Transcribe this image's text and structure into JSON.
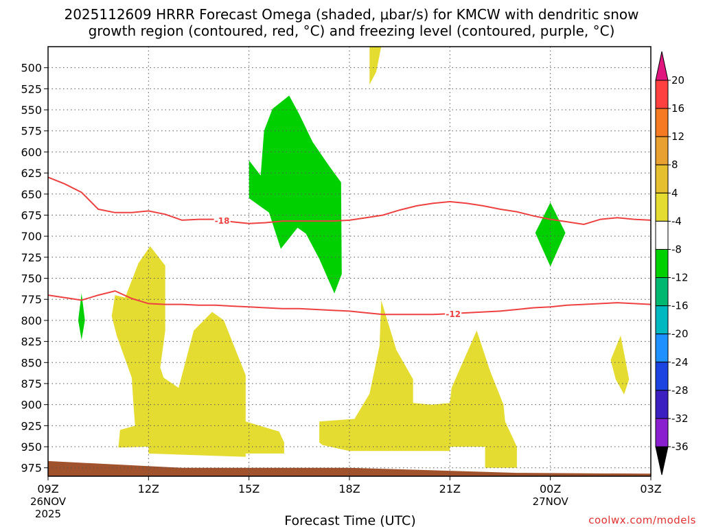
{
  "chart_data": {
    "type": "time-height contour",
    "title_line1": "2025112609 HRRR Forecast Omega (shaded, μbar/s) for KMCW with dendritic snow",
    "title_line2": "growth region (contoured, red, °C) and freezing level (contoured, purple, °C)",
    "xlabel": "Forecast Time (UTC)",
    "credit": "coolwx.com/models",
    "x_ticks": [
      {
        "t": 0,
        "label": "09Z",
        "date": "26NOV",
        "year": "2025"
      },
      {
        "t": 3,
        "label": "12Z",
        "date": "",
        "year": ""
      },
      {
        "t": 6,
        "label": "15Z",
        "date": "",
        "year": ""
      },
      {
        "t": 9,
        "label": "18Z",
        "date": "",
        "year": ""
      },
      {
        "t": 12,
        "label": "21Z",
        "date": "",
        "year": ""
      },
      {
        "t": 15,
        "label": "00Z",
        "date": "27NOV",
        "year": ""
      },
      {
        "t": 18,
        "label": "03Z",
        "date": "",
        "year": ""
      }
    ],
    "xlim_hours": [
      0,
      18
    ],
    "y_ticks": [
      500,
      525,
      550,
      575,
      600,
      625,
      650,
      675,
      700,
      725,
      750,
      775,
      800,
      825,
      850,
      875,
      900,
      925,
      950,
      975
    ],
    "ylim_mb": [
      475,
      985
    ],
    "omega_regions": [
      {
        "category": "4 to 8",
        "color": "#e5dc32",
        "points": [
          [
            9.6,
            475
          ],
          [
            9.95,
            475
          ],
          [
            9.8,
            505
          ],
          [
            9.6,
            520
          ]
        ]
      },
      {
        "category": "-8 to -4",
        "color": "#00d000",
        "points": [
          [
            6.35,
            628
          ],
          [
            6.45,
            575
          ],
          [
            6.7,
            549
          ],
          [
            7.2,
            533
          ],
          [
            7.5,
            555
          ],
          [
            7.9,
            588
          ],
          [
            8.4,
            617
          ],
          [
            8.75,
            636
          ],
          [
            8.77,
            745
          ],
          [
            8.55,
            768
          ],
          [
            8.1,
            727
          ],
          [
            7.7,
            697
          ],
          [
            7.45,
            690
          ],
          [
            7.05,
            710
          ],
          [
            6.95,
            715
          ],
          [
            6.6,
            672
          ],
          [
            6.0,
            655
          ],
          [
            6.0,
            610
          ]
        ]
      },
      {
        "category": "-8 to -4",
        "color": "#00d000",
        "points": [
          [
            15.0,
            660
          ],
          [
            15.45,
            696
          ],
          [
            15.0,
            736
          ],
          [
            14.55,
            696
          ]
        ]
      },
      {
        "category": "-8 to -4",
        "color": "#00d000",
        "points": [
          [
            1.0,
            768
          ],
          [
            1.1,
            800
          ],
          [
            1.0,
            823
          ],
          [
            0.9,
            800
          ]
        ]
      },
      {
        "category": "4 to 8",
        "color": "#e5dc32",
        "points": [
          [
            2.3,
            773
          ],
          [
            2.7,
            732
          ],
          [
            3.05,
            712
          ],
          [
            3.5,
            735
          ],
          [
            3.5,
            812
          ],
          [
            3.35,
            856
          ],
          [
            3.45,
            868
          ],
          [
            3.9,
            880
          ],
          [
            4.35,
            812
          ],
          [
            4.9,
            790
          ],
          [
            5.25,
            800
          ],
          [
            5.45,
            820
          ],
          [
            5.9,
            865
          ],
          [
            5.9,
            920
          ],
          [
            6.9,
            932
          ],
          [
            7.05,
            945
          ],
          [
            7.05,
            958
          ],
          [
            5.9,
            958
          ],
          [
            5.9,
            962
          ],
          [
            3.0,
            958
          ],
          [
            3.0,
            950
          ],
          [
            2.1,
            951
          ],
          [
            2.15,
            930
          ],
          [
            2.6,
            925
          ],
          [
            2.55,
            900
          ],
          [
            2.5,
            868
          ],
          [
            2.05,
            818
          ],
          [
            1.9,
            795
          ],
          [
            2.0,
            770
          ]
        ]
      },
      {
        "category": "4 to 8",
        "color": "#e5dc32",
        "points": [
          [
            8.1,
            920
          ],
          [
            9.15,
            917
          ],
          [
            9.6,
            887
          ],
          [
            9.9,
            830
          ],
          [
            9.95,
            776
          ],
          [
            10.4,
            835
          ],
          [
            10.9,
            870
          ],
          [
            10.9,
            898
          ],
          [
            11.45,
            900
          ],
          [
            12.0,
            898
          ],
          [
            12.05,
            880
          ],
          [
            12.8,
            812
          ],
          [
            13.2,
            860
          ],
          [
            13.6,
            900
          ],
          [
            13.65,
            920
          ],
          [
            14.0,
            950
          ],
          [
            14.0,
            975
          ],
          [
            13.05,
            975
          ],
          [
            13.05,
            950
          ],
          [
            12.0,
            950
          ],
          [
            12.0,
            955
          ],
          [
            9.0,
            955
          ],
          [
            9.0,
            955
          ],
          [
            8.2,
            948
          ],
          [
            8.1,
            945
          ]
        ]
      },
      {
        "category": "4 to 8",
        "color": "#e5dc32",
        "points": [
          [
            17.1,
            818
          ],
          [
            17.35,
            870
          ],
          [
            17.2,
            888
          ],
          [
            16.95,
            870
          ],
          [
            16.8,
            847
          ]
        ]
      }
    ],
    "terrain": {
      "color": "#a0522d",
      "points": [
        [
          0,
          967
        ],
        [
          4,
          975
        ],
        [
          9,
          975
        ],
        [
          14,
          981
        ],
        [
          18,
          982
        ],
        [
          18,
          990
        ],
        [
          0,
          990
        ]
      ]
    },
    "dgz_contours": [
      {
        "label": "-18",
        "color": "#ee4040",
        "points": [
          [
            0,
            630
          ],
          [
            0.5,
            638
          ],
          [
            1.0,
            648
          ],
          [
            1.5,
            668
          ],
          [
            2.0,
            672
          ],
          [
            2.5,
            672
          ],
          [
            3.0,
            670
          ],
          [
            3.5,
            674
          ],
          [
            4.0,
            681
          ],
          [
            4.5,
            680
          ],
          [
            5.0,
            680
          ],
          [
            5.5,
            683
          ],
          [
            6.0,
            685
          ],
          [
            6.5,
            684
          ],
          [
            7.0,
            682
          ],
          [
            7.5,
            682
          ],
          [
            8.0,
            682
          ],
          [
            8.5,
            682
          ],
          [
            9.0,
            681
          ],
          [
            9.5,
            678
          ],
          [
            10.0,
            675
          ],
          [
            10.5,
            669
          ],
          [
            11.0,
            664
          ],
          [
            11.5,
            661
          ],
          [
            12.0,
            659
          ],
          [
            12.5,
            661
          ],
          [
            13.0,
            664
          ],
          [
            13.5,
            668
          ],
          [
            14.0,
            671
          ],
          [
            14.5,
            676
          ],
          [
            15.0,
            680
          ],
          [
            15.5,
            683
          ],
          [
            16.0,
            686
          ],
          [
            16.5,
            680
          ],
          [
            17.0,
            678
          ],
          [
            17.5,
            680
          ],
          [
            18.0,
            681
          ]
        ],
        "label_t": 5.2
      },
      {
        "label": "-12",
        "color": "#ee4040",
        "points": [
          [
            0,
            770
          ],
          [
            0.5,
            773
          ],
          [
            1.0,
            776
          ],
          [
            1.5,
            770
          ],
          [
            2.0,
            765
          ],
          [
            2.5,
            774
          ],
          [
            3.0,
            780
          ],
          [
            3.5,
            781
          ],
          [
            4.0,
            781
          ],
          [
            4.5,
            782
          ],
          [
            5.0,
            782
          ],
          [
            5.5,
            783
          ],
          [
            6.0,
            784
          ],
          [
            6.5,
            785
          ],
          [
            7.0,
            786
          ],
          [
            7.5,
            786
          ],
          [
            8.0,
            787
          ],
          [
            8.5,
            788
          ],
          [
            9.0,
            789
          ],
          [
            9.5,
            791
          ],
          [
            10.0,
            793
          ],
          [
            10.5,
            793
          ],
          [
            11.0,
            793
          ],
          [
            11.5,
            793
          ],
          [
            12.0,
            792
          ],
          [
            12.5,
            791
          ],
          [
            13.0,
            790
          ],
          [
            13.5,
            789
          ],
          [
            14.0,
            787
          ],
          [
            14.5,
            785
          ],
          [
            15.0,
            784
          ],
          [
            15.5,
            782
          ],
          [
            16.0,
            781
          ],
          [
            16.5,
            780
          ],
          [
            17.0,
            779
          ],
          [
            17.5,
            780
          ],
          [
            18.0,
            781
          ]
        ],
        "label_t": 12.1
      }
    ],
    "colorbar": {
      "labels": [
        "20",
        "16",
        "12",
        "8",
        "4",
        "-4",
        "-8",
        "-12",
        "-16",
        "-20",
        "-24",
        "-28",
        "-32",
        "-36"
      ],
      "colors": [
        "#ff4040",
        "#f57a22",
        "#e8a030",
        "#e6bf2f",
        "#e5dc32",
        "#ffffff",
        "#00d000",
        "#00b870",
        "#00b8c0",
        "#1e90ff",
        "#1c44e0",
        "#3b1fc0",
        "#8a1fd0",
        "#a6a6a6"
      ],
      "top_arrow_color": "#e0157e",
      "bottom_arrow_color": "#000000"
    }
  }
}
